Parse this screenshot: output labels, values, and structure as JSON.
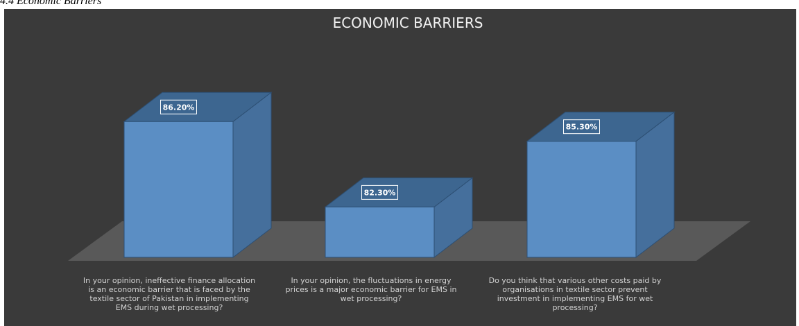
{
  "caption": "4.4 Economic Barriers",
  "chart_data": {
    "type": "bar",
    "title": "ECONOMIC BARRIERS",
    "categories": [
      "In your opinion, ineffective finance allocation is an economic barrier that is faced by the textile sector of Pakistan in implementing EMS during wet processing?",
      "In your opinion, the fluctuations in energy prices is a major economic barrier for EMS in wet processing?",
      "Do you think that various other costs paid by organisations in textile sector prevent investment in implementing EMS for wet processing?"
    ],
    "values": [
      86.2,
      82.3,
      85.3
    ],
    "data_labels": [
      "86.20%",
      "82.30%",
      "85.30%"
    ],
    "ylim": [
      80,
      87
    ],
    "grid": false,
    "legend": "none",
    "style": "3d-column",
    "colors": {
      "background": "#3a3a3a",
      "floor": "#595959",
      "bar_front": "#5b8ec4",
      "bar_side": "#456f9c",
      "bar_top": "#3d6690",
      "bar_edge": "#2d4f73",
      "title": "#f2f2f2",
      "label_text": "#d4d4d4"
    }
  }
}
